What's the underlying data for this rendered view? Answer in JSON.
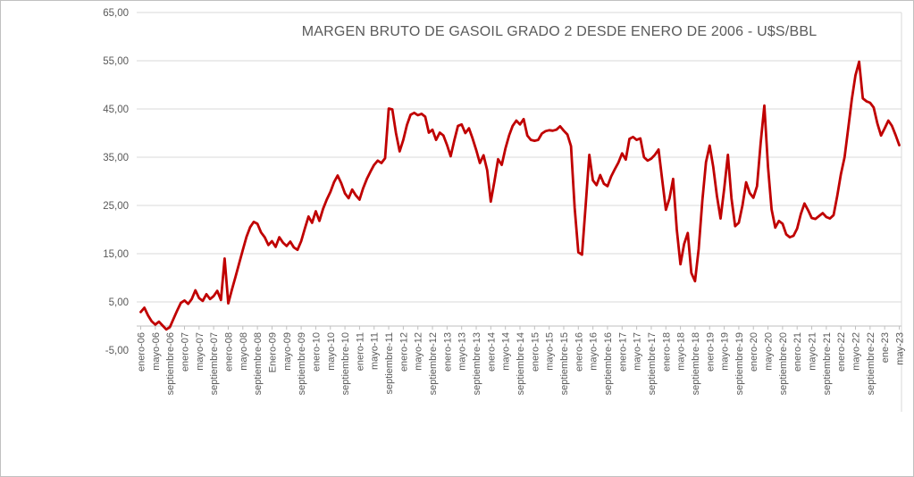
{
  "window": {
    "background": "#FFFFFF",
    "border_color": "#C0C0C0"
  },
  "chart_data": {
    "type": "line",
    "title": "MARGEN BRUTO DE GASOIL GRADO 2 DESDE ENERO DE 2006 - U$S/BBL",
    "title_color": "#595959",
    "legend": "none",
    "grid": "horizontal",
    "grid_color": "#D9D9D9",
    "axis_color": "#BFBFBF",
    "label_color": "#595959",
    "ylim": [
      -5,
      65
    ],
    "axis_cross_value": 0,
    "y_ticks": [
      {
        "value": 65,
        "label": "65,00"
      },
      {
        "value": 55,
        "label": "55,00"
      },
      {
        "value": 45,
        "label": "45,00"
      },
      {
        "value": 35,
        "label": "35,00"
      },
      {
        "value": 25,
        "label": "25,00"
      },
      {
        "value": 15,
        "label": "15,00"
      },
      {
        "value": 5,
        "label": "5,00"
      },
      {
        "value": -5,
        "label": "-5,00"
      }
    ],
    "x_tick_interval_months": 4,
    "x_first_month": "enero-06",
    "x_last_month": "may-23",
    "x_tick_labels": [
      "enero-06",
      "mayo-06",
      "septiembre-06",
      "enero-07",
      "mayo-07",
      "septiembre-07",
      "enero-08",
      "mayo-08",
      "septiembre-08",
      "Enero-09",
      "mayo-09",
      "septiembre-09",
      "enero-10",
      "mayo-10",
      "septiembre-10",
      "enero-11",
      "mayo-11",
      "septiembre-11",
      "enero-12",
      "mayo-12",
      "septiembre-12",
      "enero-13",
      "mayo-13",
      "septiembre-13",
      "enero-14",
      "mayo-14",
      "septiembre-14",
      "enero-15",
      "mayo-15",
      "septiembre-15",
      "enero-16",
      "mayo-16",
      "septiembre-16",
      "enero-17",
      "mayo-17",
      "septiembre-17",
      "enero-18",
      "mayo-18",
      "septiembre-18",
      "enero-19",
      "mayo-19",
      "septiembre-19",
      "enero-20",
      "mayo-20",
      "septiembre-20",
      "enero-21",
      "mayo-21",
      "septiembre-21",
      "enero-22",
      "mayo-22",
      "septiembre-22",
      "ene-23",
      "may-23"
    ],
    "series": [
      {
        "name": "Margen bruto de gasoil grado 2 (U$S/BBL)",
        "color": "#C00000",
        "stroke_width": 2.8,
        "values": [
          2.9,
          3.8,
          2.2,
          1.0,
          0.3,
          0.9,
          0.1,
          -0.7,
          -0.2,
          1.5,
          3.2,
          4.8,
          5.3,
          4.6,
          5.6,
          7.4,
          5.8,
          5.2,
          6.6,
          5.6,
          6.2,
          7.3,
          5.4,
          14.0,
          4.7,
          7.5,
          10.2,
          13.0,
          15.8,
          18.5,
          20.5,
          21.6,
          21.2,
          19.4,
          18.4,
          16.8,
          17.6,
          16.4,
          18.4,
          17.3,
          16.6,
          17.5,
          16.3,
          15.8,
          17.6,
          20.2,
          22.7,
          21.4,
          23.8,
          21.8,
          24.3,
          26.2,
          27.8,
          29.8,
          31.2,
          29.6,
          27.5,
          26.5,
          28.3,
          27.1,
          26.2,
          28.6,
          30.5,
          32.0,
          33.4,
          34.3,
          33.8,
          34.8,
          45.1,
          44.9,
          40.0,
          36.2,
          38.6,
          41.7,
          43.8,
          44.2,
          43.7,
          44.0,
          43.4,
          40.1,
          40.7,
          38.6,
          40.1,
          39.5,
          37.5,
          35.2,
          38.5,
          41.5,
          41.8,
          40.0,
          41.0,
          38.9,
          36.5,
          33.8,
          35.4,
          32.3,
          25.8,
          30.0,
          34.6,
          33.4,
          36.8,
          39.5,
          41.5,
          42.6,
          41.8,
          42.9,
          39.5,
          38.6,
          38.4,
          38.6,
          39.9,
          40.4,
          40.6,
          40.5,
          40.7,
          41.4,
          40.5,
          39.7,
          37.3,
          24.5,
          15.3,
          14.8,
          25.0,
          35.5,
          30.2,
          29.2,
          31.3,
          29.5,
          29.0,
          31.0,
          32.5,
          33.9,
          35.8,
          34.5,
          38.8,
          39.2,
          38.6,
          38.9,
          35.0,
          34.3,
          34.7,
          35.5,
          36.6,
          30.3,
          24.1,
          26.5,
          30.5,
          20.0,
          12.8,
          17.0,
          19.3,
          11.0,
          9.3,
          16.0,
          26.0,
          34.0,
          37.4,
          33.0,
          27.0,
          22.3,
          28.5,
          35.5,
          26.5,
          20.7,
          21.4,
          25.0,
          29.8,
          27.6,
          26.6,
          29.0,
          38.0,
          45.7,
          33.0,
          24.2,
          20.4,
          21.8,
          21.2,
          19.0,
          18.4,
          18.7,
          20.2,
          23.2,
          25.4,
          24.0,
          22.4,
          22.2,
          22.8,
          23.4,
          22.6,
          22.3,
          23.0,
          27.0,
          31.5,
          35.0,
          41.0,
          47.0,
          52.0,
          54.8,
          47.2,
          46.6,
          46.3,
          45.3,
          42.0,
          39.5,
          41.0,
          42.6,
          41.5,
          39.6,
          37.5
        ]
      }
    ]
  }
}
